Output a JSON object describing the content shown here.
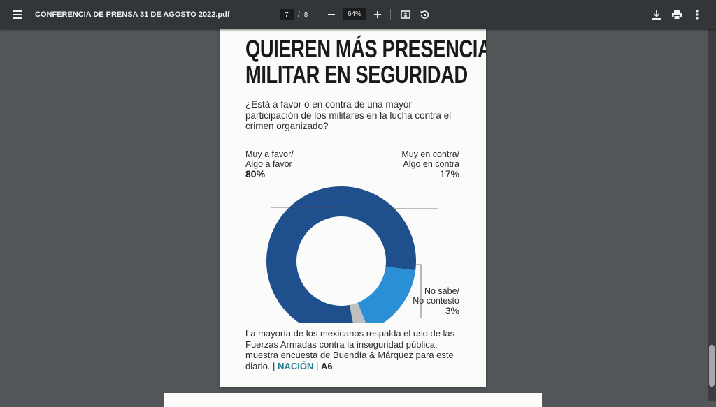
{
  "toolbar": {
    "menu_icon": "hamburger-menu-icon",
    "title": "CONFERENCIA DE PRENSA 31 DE AGOSTO 2022.pdf",
    "page_current": "7",
    "page_separator": "/",
    "page_total": "8",
    "zoom_out_icon": "minus-icon",
    "zoom_level": "64%",
    "zoom_in_icon": "plus-icon",
    "fit_icon": "fit-page-icon",
    "rotate_icon": "rotate-icon",
    "download_icon": "download-icon",
    "print_icon": "print-icon",
    "more_icon": "more-vert-icon"
  },
  "article": {
    "headline_line1": "QUIEREN MÁS PRESENCIA",
    "headline_line2": "MILITAR EN SEGURIDAD",
    "question": "¿Está a favor o en contra de una mayor participación de los militares en la lucha contra el crimen organizado?",
    "summary": "La mayoría de los mexicanos respalda el uso de las Fuerzas Armadas contra la inseguridad pública, muestra encuesta de Buendía & Márquez para este diario.",
    "section_sep1": "|",
    "section": "NACIÓN",
    "section_sep2": "|",
    "page_ref": "A6"
  },
  "chart_data": {
    "type": "pie",
    "donut": true,
    "categories": [
      "Muy a favor/ Algo a favor",
      "Muy en contra/ Algo en contra",
      "No sabe/ No contestó"
    ],
    "values": [
      80,
      17,
      3
    ],
    "labels": [
      {
        "line1": "Muy a favor/",
        "line2": "Algo a favor",
        "pct": "80%"
      },
      {
        "line1": "Muy en contra/",
        "line2": "Algo en contra",
        "pct": "17%"
      },
      {
        "line1": "No sabe/",
        "line2": "No contestó",
        "pct": "3%"
      }
    ],
    "colors": [
      "#1f4f8c",
      "#2a8fd4",
      "#bfbfbf"
    ]
  }
}
